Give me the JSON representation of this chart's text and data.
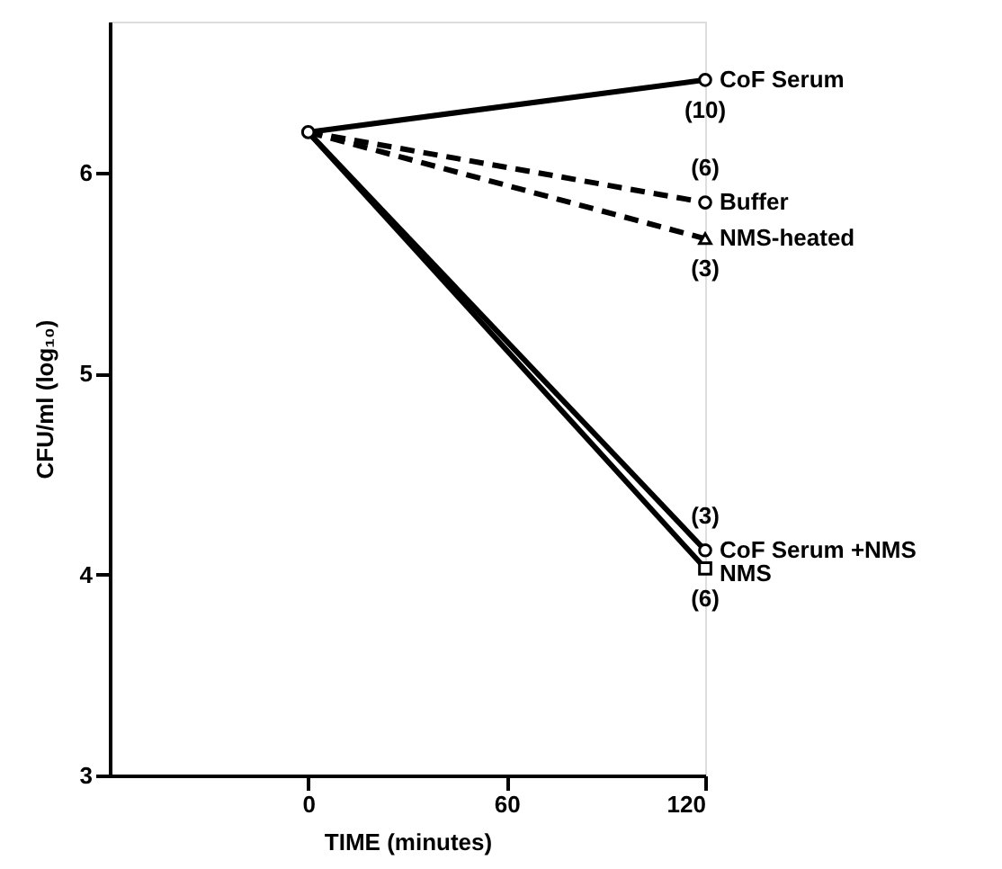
{
  "chart_data": {
    "type": "line",
    "xlabel": "TIME (minutes)",
    "ylabel": "CFU/ml (log₁₀)",
    "xlim": [
      -60,
      120
    ],
    "xticks": [
      0,
      60,
      120
    ],
    "ylim": [
      3,
      6.75
    ],
    "yticks": [
      3,
      4,
      5,
      6
    ],
    "grid": false,
    "x": [
      0,
      120
    ],
    "series": [
      {
        "name": "CoF Serum",
        "color": "#000000",
        "values": [
          6.2,
          6.46
        ],
        "marker": "circle",
        "line_style": "solid"
      },
      {
        "name": "Buffer",
        "color": "#000000",
        "values": [
          6.2,
          5.85
        ],
        "marker": "circle",
        "line_style": "dashed"
      },
      {
        "name": "NMS-heated",
        "color": "#000000",
        "values": [
          6.2,
          5.67
        ],
        "marker": "triangle",
        "line_style": "dashed"
      },
      {
        "name": "CoF Serum +NMS",
        "color": "#000000",
        "values": [
          6.2,
          4.12
        ],
        "marker": "circle",
        "line_style": "solid"
      },
      {
        "name": "NMS",
        "color": "#000000",
        "values": [
          6.2,
          4.03
        ],
        "marker": "square",
        "line_style": "solid"
      }
    ],
    "annotations": [
      "(10)",
      "(6)",
      "(3)",
      "(3)",
      "(6)"
    ]
  }
}
